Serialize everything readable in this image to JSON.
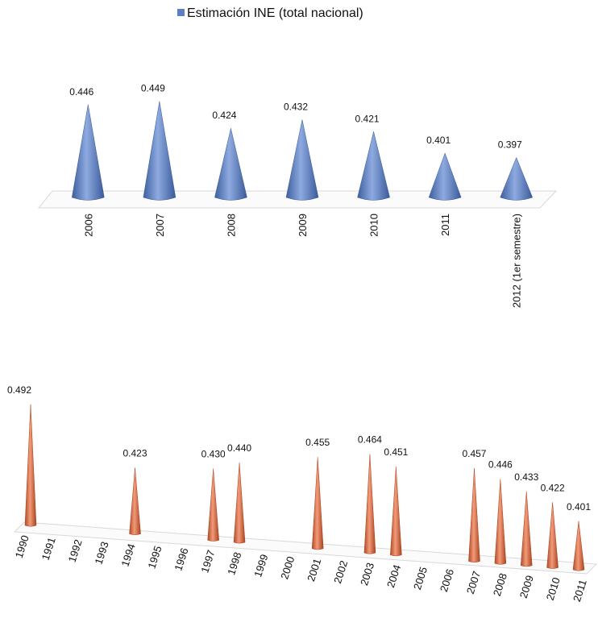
{
  "chart_data": [
    {
      "type": "cone",
      "categories": [
        "2006",
        "2007",
        "2008",
        "2009",
        "2010",
        "2011",
        "2012 (1er semestre)"
      ],
      "series": [
        {
          "name": "Estimación INE (total nacional)",
          "color": "#5b7fc4",
          "values": [
            0.446,
            0.449,
            0.424,
            0.432,
            0.421,
            0.401,
            0.397
          ]
        }
      ],
      "ylim": [
        0.36,
        0.46
      ]
    },
    {
      "type": "cone",
      "categories": [
        "1990",
        "1991",
        "1992",
        "1993",
        "1994",
        "1995",
        "1996",
        "1997",
        "1998",
        "1999",
        "2000",
        "2001",
        "2002",
        "2003",
        "2004",
        "2005",
        "2006",
        "2007",
        "2008",
        "2009",
        "2010",
        "2011"
      ],
      "color": "#dc6a45",
      "values": [
        0.492,
        null,
        null,
        null,
        0.423,
        null,
        null,
        0.43,
        0.44,
        null,
        null,
        0.455,
        null,
        0.464,
        0.451,
        null,
        null,
        0.457,
        0.446,
        0.433,
        0.422,
        0.401
      ],
      "value_labels": [
        "0.492",
        null,
        null,
        null,
        "0.423",
        null,
        null,
        "0.430",
        "0.440",
        null,
        null,
        "0.455",
        null,
        "0.464",
        "0.451",
        null,
        null,
        "0.457",
        "0.446",
        "0.433",
        "0.422",
        "0.401"
      ],
      "ylim": [
        0.34,
        0.5
      ]
    }
  ]
}
